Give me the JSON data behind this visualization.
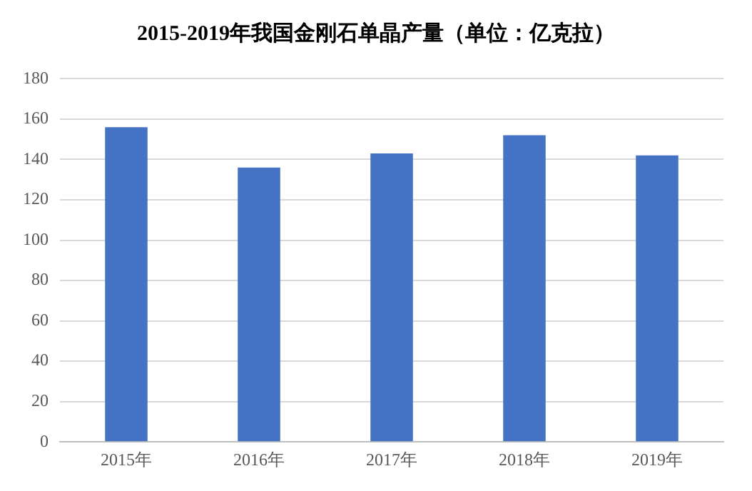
{
  "chart_data": {
    "type": "bar",
    "title": "2015-2019年我国金刚石单晶产量（单位：亿克拉）",
    "categories": [
      "2015年",
      "2016年",
      "2017年",
      "2018年",
      "2019年"
    ],
    "values": [
      156,
      136,
      143,
      152,
      142
    ],
    "color": "#4472c4",
    "ylim": [
      0,
      180
    ],
    "yticks": [
      0,
      20,
      40,
      60,
      80,
      100,
      120,
      140,
      160,
      180
    ],
    "grid": "y"
  }
}
